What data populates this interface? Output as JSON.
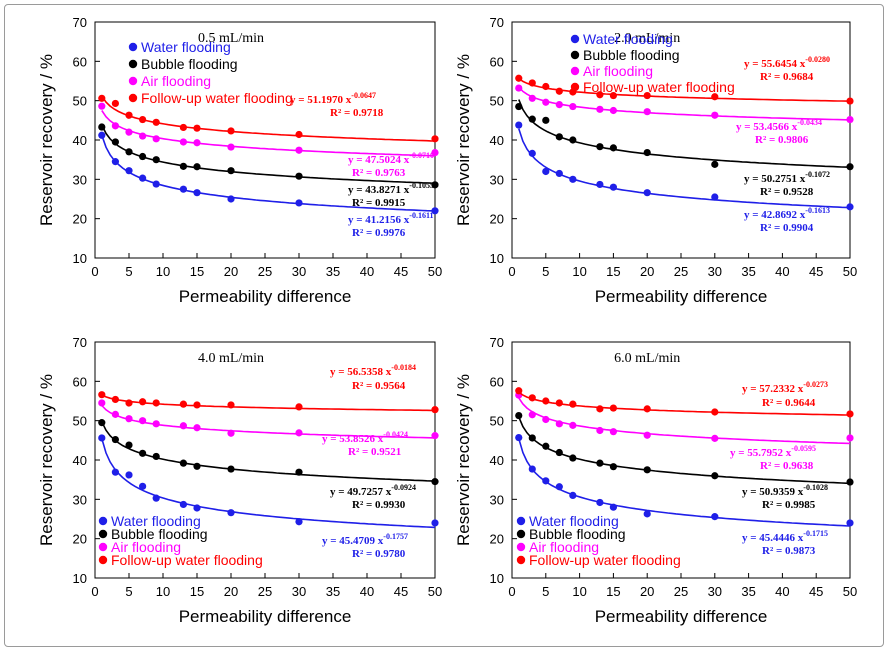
{
  "chart_data": [
    {
      "type": "scatter",
      "title": "0.5 mL/min",
      "xlabel": "Permeability difference",
      "ylabel": "Reservoir recovery / %",
      "xlim": [
        0,
        50
      ],
      "ylim": [
        10,
        70
      ],
      "xticks": [
        0,
        5,
        10,
        15,
        20,
        25,
        30,
        35,
        40,
        45,
        50
      ],
      "yticks": [
        10,
        20,
        30,
        40,
        50,
        60,
        70
      ],
      "series": [
        {
          "name": "Water flooding",
          "color": "#1f1fe8",
          "x": [
            1,
            3,
            5,
            7,
            9,
            13,
            15,
            20,
            30,
            50
          ],
          "y": [
            41.2,
            34.5,
            32.2,
            30.3,
            28.8,
            27.5,
            26.6,
            25.0,
            24.0,
            22.0
          ],
          "fit": {
            "a": 41.2156,
            "b": -0.1611
          },
          "equation": "y = 41.2156 x-0.1611",
          "r2": "R² = 0.9976"
        },
        {
          "name": "Bubble flooding",
          "color": "#000000",
          "x": [
            1,
            3,
            5,
            7,
            9,
            13,
            15,
            20,
            30,
            50
          ],
          "y": [
            43.3,
            39.5,
            37.0,
            35.8,
            35.0,
            33.3,
            33.2,
            32.2,
            30.8,
            28.6
          ],
          "fit": {
            "a": 43.8271,
            "b": -0.1055
          },
          "equation": "y = 43.8271 x-0.1055",
          "r2": "R² = 0.9915"
        },
        {
          "name": "Air flooding",
          "color": "#ff00ff",
          "x": [
            1,
            3,
            5,
            7,
            9,
            13,
            15,
            20,
            30,
            50
          ],
          "y": [
            48.6,
            43.6,
            42.0,
            41.0,
            40.3,
            39.5,
            39.3,
            38.2,
            37.4,
            36.8
          ],
          "fit": {
            "a": 47.5024,
            "b": -0.071
          },
          "equation": "y = 47.5024 x-0.0710",
          "r2": "R² = 0.9763"
        },
        {
          "name": "Follow-up water flooding",
          "color": "#ff0000",
          "x": [
            1,
            3,
            5,
            7,
            9,
            13,
            15,
            20,
            30,
            50
          ],
          "y": [
            50.6,
            49.3,
            46.3,
            45.2,
            44.5,
            43.2,
            43.0,
            42.3,
            41.4,
            40.3
          ],
          "fit": {
            "a": 51.197,
            "b": -0.0647
          },
          "equation": "y = 51.1970 x-0.0647",
          "r2": "R² = 0.9718"
        }
      ]
    },
    {
      "type": "scatter",
      "title": "2.0 mL/min",
      "xlabel": "Permeability difference",
      "ylabel": "Reservoir recovery / %",
      "xlim": [
        0,
        50
      ],
      "ylim": [
        10,
        70
      ],
      "xticks": [
        0,
        5,
        10,
        15,
        20,
        25,
        30,
        35,
        40,
        45,
        50
      ],
      "yticks": [
        10,
        20,
        30,
        40,
        50,
        60,
        70
      ],
      "series": [
        {
          "name": "Water flooding",
          "color": "#1f1fe8",
          "x": [
            1,
            3,
            5,
            7,
            9,
            13,
            15,
            20,
            30,
            50
          ],
          "y": [
            43.8,
            36.6,
            32.0,
            31.5,
            30.0,
            28.7,
            28.0,
            26.6,
            25.5,
            23.0
          ],
          "fit": {
            "a": 42.8692,
            "b": -0.1613
          },
          "equation": "y = 42.8692 x-0.1613",
          "r2": "R² = 0.9904"
        },
        {
          "name": "Bubble flooding",
          "color": "#000000",
          "x": [
            1,
            3,
            5,
            7,
            9,
            13,
            15,
            20,
            30,
            50
          ],
          "y": [
            48.5,
            45.3,
            45.0,
            40.8,
            40.0,
            38.3,
            38.0,
            36.8,
            33.8,
            33.2
          ],
          "fit": {
            "a": 50.2751,
            "b": -0.1072
          },
          "equation": "y = 50.2751 x-0.1072",
          "r2": "R² = 0.9528"
        },
        {
          "name": "Air flooding",
          "color": "#ff00ff",
          "x": [
            1,
            3,
            5,
            7,
            9,
            13,
            15,
            20,
            30,
            50
          ],
          "y": [
            53.2,
            50.6,
            49.6,
            49.0,
            48.5,
            47.8,
            47.5,
            47.2,
            46.3,
            45.2
          ],
          "fit": {
            "a": 53.4566,
            "b": -0.0434
          },
          "equation": "y = 53.4566 x-0.0434",
          "r2": "R² = 0.9806"
        },
        {
          "name": "Follow-up water flooding",
          "color": "#ff0000",
          "x": [
            1,
            3,
            5,
            7,
            9,
            13,
            15,
            20,
            30,
            50
          ],
          "y": [
            55.7,
            54.5,
            53.6,
            52.4,
            52.2,
            51.5,
            51.3,
            51.3,
            51.0,
            49.9
          ],
          "fit": {
            "a": 55.6454,
            "b": -0.028
          },
          "equation": "y = 55.6454 x-0.0280",
          "r2": "R² = 0.9684"
        }
      ]
    },
    {
      "type": "scatter",
      "title": "4.0 mL/min",
      "xlabel": "Permeability difference",
      "ylabel": "Reservoir recovery / %",
      "xlim": [
        0,
        50
      ],
      "ylim": [
        10,
        70
      ],
      "xticks": [
        0,
        5,
        10,
        15,
        20,
        25,
        30,
        35,
        40,
        45,
        50
      ],
      "yticks": [
        10,
        20,
        30,
        40,
        50,
        60,
        70
      ],
      "series": [
        {
          "name": "Water flooding",
          "color": "#1f1fe8",
          "x": [
            1,
            3,
            5,
            7,
            9,
            13,
            15,
            20,
            30,
            50
          ],
          "y": [
            45.6,
            36.9,
            36.2,
            33.3,
            30.3,
            28.7,
            27.8,
            26.6,
            24.3,
            24.0
          ],
          "fit": {
            "a": 45.4709,
            "b": -0.1757
          },
          "equation": "y = 45.4709 x-0.1757",
          "r2": "R² = 0.9780"
        },
        {
          "name": "Bubble flooding",
          "color": "#000000",
          "x": [
            1,
            3,
            5,
            7,
            9,
            13,
            15,
            20,
            30,
            50
          ],
          "y": [
            49.5,
            45.2,
            43.8,
            41.7,
            40.9,
            39.2,
            38.4,
            37.7,
            36.9,
            34.5
          ],
          "fit": {
            "a": 49.7257,
            "b": -0.0924
          },
          "equation": "y = 49.7257 x-0.0924",
          "r2": "R² = 0.9930"
        },
        {
          "name": "Air flooding",
          "color": "#ff00ff",
          "x": [
            1,
            3,
            5,
            7,
            9,
            13,
            15,
            20,
            30,
            50
          ],
          "y": [
            54.5,
            51.6,
            50.5,
            50.0,
            49.2,
            48.7,
            48.2,
            46.8,
            46.9,
            46.2
          ],
          "fit": {
            "a": 53.8526,
            "b": -0.0424
          },
          "equation": "y = 53.8526 x-0.0424",
          "r2": "R² = 0.9521"
        },
        {
          "name": "Follow-up water flooding",
          "color": "#ff0000",
          "x": [
            1,
            3,
            5,
            7,
            9,
            13,
            15,
            20,
            30,
            50
          ],
          "y": [
            56.6,
            55.4,
            54.5,
            54.8,
            54.5,
            54.2,
            54.0,
            54.0,
            53.5,
            52.8
          ],
          "fit": {
            "a": 56.5358,
            "b": -0.0184
          },
          "equation": "y = 56.5358 x-0.0184",
          "r2": "R² = 0.9564"
        }
      ]
    },
    {
      "type": "scatter",
      "title": "6.0 mL/min",
      "xlabel": "Permeability difference",
      "ylabel": "Reservoir recovery / %",
      "xlim": [
        0,
        50
      ],
      "ylim": [
        10,
        70
      ],
      "xticks": [
        0,
        5,
        10,
        15,
        20,
        25,
        30,
        35,
        40,
        45,
        50
      ],
      "yticks": [
        10,
        20,
        30,
        40,
        50,
        60,
        70
      ],
      "series": [
        {
          "name": "Water flooding",
          "color": "#1f1fe8",
          "x": [
            1,
            3,
            5,
            7,
            9,
            13,
            15,
            20,
            30,
            50
          ],
          "y": [
            45.7,
            37.7,
            34.7,
            33.2,
            31.0,
            29.2,
            28.0,
            26.3,
            25.6,
            24.0
          ],
          "fit": {
            "a": 45.4446,
            "b": -0.1715
          },
          "equation": "y = 45.4446 x-0.1715",
          "r2": "R² = 0.9873"
        },
        {
          "name": "Bubble flooding",
          "color": "#000000",
          "x": [
            1,
            3,
            5,
            7,
            9,
            13,
            15,
            20,
            30,
            50
          ],
          "y": [
            51.3,
            45.6,
            43.5,
            41.9,
            40.5,
            39.2,
            38.3,
            37.5,
            36.0,
            34.4
          ],
          "fit": {
            "a": 50.9359,
            "b": -0.1028
          },
          "equation": "y = 50.9359 x-0.1028",
          "r2": "R² = 0.9985"
        },
        {
          "name": "Air flooding",
          "color": "#ff00ff",
          "x": [
            1,
            3,
            5,
            7,
            9,
            13,
            15,
            20,
            30,
            50
          ],
          "y": [
            56.5,
            51.5,
            50.3,
            49.2,
            48.8,
            47.5,
            47.2,
            46.3,
            45.5,
            45.6
          ],
          "fit": {
            "a": 55.7952,
            "b": -0.0595
          },
          "equation": "y = 55.7952 x-0.0595",
          "r2": "R² = 0.9638"
        },
        {
          "name": "Follow-up water flooding",
          "color": "#ff0000",
          "x": [
            1,
            3,
            5,
            7,
            9,
            13,
            15,
            20,
            30,
            50
          ],
          "y": [
            57.6,
            55.8,
            55.0,
            54.5,
            54.2,
            53.0,
            53.2,
            53.0,
            52.2,
            51.7
          ],
          "fit": {
            "a": 57.2332,
            "b": -0.0273
          },
          "equation": "y = 57.2332 x-0.0273",
          "r2": "R² = 0.9644"
        }
      ]
    }
  ]
}
